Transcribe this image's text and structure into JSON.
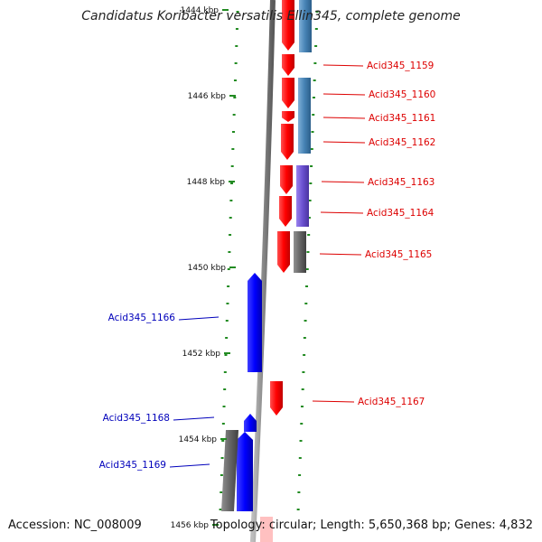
{
  "title": "Candidatus Koribacter versatilis Ellin345, complete genome",
  "footer": {
    "accession": "Accession: NC_008009",
    "summary": "Topology: circular; Length: 5,650,368 bp; Genes: 4,832"
  },
  "colors": {
    "forward_gene": "#ff0000",
    "reverse_gene": "#0000ff",
    "forward_label": "#dd0000",
    "reverse_label": "#0000bb",
    "tick": "#228b22",
    "backbone": "#888888"
  },
  "ruler": {
    "ticks": [
      {
        "label": "1444 kbp",
        "value": 1444
      },
      {
        "label": "1446 kbp",
        "value": 1446
      },
      {
        "label": "1448 kbp",
        "value": 1448
      },
      {
        "label": "1450 kbp",
        "value": 1450
      },
      {
        "label": "1452 kbp",
        "value": 1452
      },
      {
        "label": "1454 kbp",
        "value": 1454
      },
      {
        "label": "1456 kbp",
        "value": 1456
      }
    ]
  },
  "genes": [
    {
      "label": "Acid345_1159",
      "strand": "+"
    },
    {
      "label": "Acid345_1160",
      "strand": "+"
    },
    {
      "label": "Acid345_1161",
      "strand": "+"
    },
    {
      "label": "Acid345_1162",
      "strand": "+"
    },
    {
      "label": "Acid345_1163",
      "strand": "+"
    },
    {
      "label": "Acid345_1164",
      "strand": "+"
    },
    {
      "label": "Acid345_1165",
      "strand": "+"
    },
    {
      "label": "Acid345_1166",
      "strand": "-"
    },
    {
      "label": "Acid345_1167",
      "strand": "+"
    },
    {
      "label": "Acid345_1168",
      "strand": "-"
    },
    {
      "label": "Acid345_1169",
      "strand": "-"
    }
  ]
}
